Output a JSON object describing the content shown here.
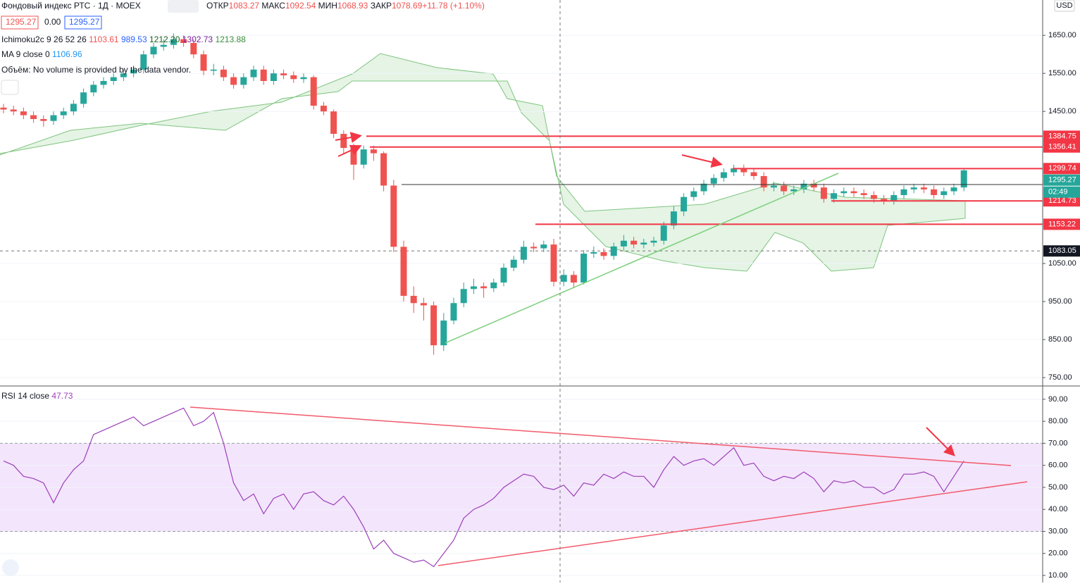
{
  "header": {
    "symbol": "Фондовый индекс РТС · 1Д · MOEX",
    "ohlc": [
      {
        "label": "ОТКР",
        "value": "1083.27"
      },
      {
        "label": "МАКС",
        "value": "1092.54"
      },
      {
        "label": "МИН",
        "value": "1068.93"
      },
      {
        "label": "ЗАКР",
        "value": "1078.69"
      }
    ],
    "change": "+11.78 (+1.10%)",
    "price_boxes": [
      "1295.27",
      "0.00",
      "1295.27"
    ],
    "currency": "USD",
    "countdown": "02:49"
  },
  "legends": {
    "ichimoku": {
      "name": "Ichimoku2c 9 26 52 26",
      "values": [
        "1103.61",
        "989.53",
        "1212.20",
        "1302.73",
        "1213.88"
      ]
    },
    "ma": {
      "name": "MA 9 close 0",
      "value": "1106.96"
    },
    "volume": "Объём: No volume is provided by the data vendor.",
    "rsi": {
      "name": "RSI 14 close",
      "value": "47.73"
    }
  },
  "chart_data": [
    {
      "type": "candlestick",
      "up_color": "#26a69a",
      "down_color": "#ef5350",
      "open": [
        1460,
        1455,
        1450,
        1440,
        1430,
        1425,
        1440,
        1450,
        1470,
        1500,
        1520,
        1530,
        1540,
        1550,
        1560,
        1600,
        1620,
        1625,
        1640,
        1630,
        1600,
        1557,
        1560,
        1540,
        1520,
        1540,
        1560,
        1530,
        1550,
        1545,
        1535,
        1540,
        1465,
        1450,
        1391,
        1354,
        1310,
        1350,
        1340,
        1255,
        1094,
        965,
        946,
        940,
        835,
        900,
        946,
        983,
        990,
        985,
        1000,
        1039,
        1060,
        1094,
        1090,
        1100,
        1002,
        1020,
        1000,
        1076,
        1080,
        1070,
        1095,
        1110,
        1100,
        1105,
        1110,
        1150,
        1187,
        1225,
        1240,
        1260,
        1275,
        1290,
        1300,
        1290,
        1280,
        1250,
        1255,
        1240,
        1245,
        1260,
        1250,
        1220,
        1235,
        1240,
        1235,
        1230,
        1220,
        1215,
        1230,
        1245,
        1250,
        1245,
        1230,
        1240,
        1250
      ],
      "high": [
        1470,
        1465,
        1460,
        1450,
        1440,
        1450,
        1460,
        1480,
        1510,
        1530,
        1540,
        1550,
        1560,
        1570,
        1610,
        1630,
        1640,
        1655,
        1650,
        1640,
        1610,
        1575,
        1570,
        1550,
        1550,
        1570,
        1570,
        1560,
        1560,
        1555,
        1550,
        1545,
        1475,
        1455,
        1400,
        1365,
        1360,
        1360,
        1345,
        1270,
        1110,
        990,
        960,
        950,
        920,
        960,
        1000,
        1010,
        1000,
        1010,
        1050,
        1070,
        1110,
        1105,
        1110,
        1115,
        1035,
        1030,
        1085,
        1095,
        1090,
        1105,
        1125,
        1120,
        1115,
        1120,
        1160,
        1200,
        1235,
        1250,
        1270,
        1285,
        1300,
        1310,
        1310,
        1300,
        1290,
        1265,
        1265,
        1255,
        1270,
        1270,
        1260,
        1245,
        1250,
        1250,
        1245,
        1240,
        1230,
        1240,
        1255,
        1260,
        1260,
        1255,
        1250,
        1260,
        1300
      ],
      "low": [
        1445,
        1440,
        1430,
        1420,
        1410,
        1415,
        1430,
        1440,
        1460,
        1490,
        1510,
        1520,
        1530,
        1540,
        1550,
        1590,
        1610,
        1615,
        1620,
        1590,
        1545,
        1545,
        1530,
        1510,
        1510,
        1530,
        1520,
        1520,
        1535,
        1525,
        1525,
        1455,
        1440,
        1380,
        1340,
        1270,
        1300,
        1320,
        1240,
        1080,
        950,
        920,
        900,
        810,
        820,
        890,
        935,
        970,
        960,
        975,
        990,
        1030,
        1050,
        1080,
        1080,
        990,
        990,
        985,
        995,
        1065,
        1060,
        1060,
        1085,
        1090,
        1090,
        1095,
        1100,
        1140,
        1175,
        1215,
        1230,
        1250,
        1265,
        1280,
        1280,
        1270,
        1240,
        1240,
        1230,
        1230,
        1235,
        1240,
        1210,
        1210,
        1225,
        1225,
        1220,
        1210,
        1205,
        1205,
        1220,
        1235,
        1235,
        1220,
        1220,
        1230,
        1240
      ],
      "close": [
        1455,
        1450,
        1440,
        1430,
        1425,
        1440,
        1450,
        1470,
        1500,
        1520,
        1530,
        1540,
        1550,
        1560,
        1600,
        1620,
        1625,
        1640,
        1630,
        1600,
        1557,
        1560,
        1540,
        1520,
        1540,
        1560,
        1530,
        1550,
        1545,
        1535,
        1540,
        1465,
        1450,
        1391,
        1354,
        1310,
        1350,
        1340,
        1255,
        1094,
        965,
        946,
        940,
        835,
        900,
        946,
        983,
        990,
        985,
        1000,
        1039,
        1060,
        1094,
        1090,
        1100,
        1002,
        1020,
        1000,
        1076,
        1080,
        1070,
        1095,
        1110,
        1100,
        1105,
        1110,
        1150,
        1187,
        1225,
        1240,
        1260,
        1275,
        1290,
        1300,
        1290,
        1280,
        1250,
        1255,
        1240,
        1245,
        1260,
        1250,
        1220,
        1235,
        1240,
        1235,
        1230,
        1220,
        1215,
        1230,
        1245,
        1250,
        1245,
        1230,
        1240,
        1250,
        1295
      ],
      "ylim": [
        728,
        1743
      ],
      "yticks": [
        {
          "value": 750,
          "label": "750.00"
        },
        {
          "value": 850,
          "label": "850.00"
        },
        {
          "value": 950,
          "label": "950.00"
        },
        {
          "value": 1050,
          "label": "1050.00"
        },
        {
          "value": 1450,
          "label": "1450.00"
        },
        {
          "value": 1550,
          "label": "1550.00"
        },
        {
          "value": 1650,
          "label": "1650.00"
        }
      ],
      "levels": [
        {
          "value": 1384.75,
          "color": "#f23645"
        },
        {
          "value": 1356.41,
          "color": "#f23645"
        },
        {
          "value": 1299.74,
          "color": "#f23645"
        },
        {
          "value": 1214.73,
          "color": "#f23645"
        },
        {
          "value": 1153.22,
          "color": "#f23645"
        }
      ],
      "last_price": {
        "value": 1295.27,
        "color": "#26a69a"
      },
      "crosshair": {
        "value": 1083.05,
        "color": "#131722"
      }
    },
    {
      "type": "line",
      "color": "#9c3fb8",
      "values": [
        62,
        60,
        55,
        54,
        52,
        43,
        52,
        58,
        62,
        74,
        76,
        78,
        80,
        82,
        78,
        80,
        82,
        84,
        86,
        78,
        80,
        84,
        70,
        52,
        44,
        47,
        38,
        45,
        47,
        40,
        47,
        48,
        44,
        42,
        46,
        40,
        32,
        22,
        26,
        20,
        18,
        16,
        17,
        14,
        20,
        26,
        36,
        40,
        42,
        45,
        50,
        53,
        56,
        55,
        50,
        49,
        51,
        46,
        52,
        51,
        56,
        54,
        57,
        55,
        55,
        50,
        58,
        64,
        60,
        62,
        63,
        60,
        64,
        68,
        60,
        61,
        55,
        53,
        55,
        54,
        57,
        54,
        48,
        53,
        52,
        53,
        50,
        50,
        47,
        49,
        56,
        56,
        57,
        55,
        48,
        55,
        62
      ],
      "ylim": [
        6.8,
        95.4
      ],
      "yticks": [
        {
          "value": 10,
          "label": "10.00"
        },
        {
          "value": 20,
          "label": "20.00"
        },
        {
          "value": 30,
          "label": "30.00"
        },
        {
          "value": 40,
          "label": "40.00"
        },
        {
          "value": 50,
          "label": "50.00"
        },
        {
          "value": 60,
          "label": "60.00"
        },
        {
          "value": 70,
          "label": "70.00"
        },
        {
          "value": 80,
          "label": "80.00"
        },
        {
          "value": 90,
          "label": "90.00"
        }
      ],
      "band": [
        30,
        70
      ],
      "band_color": "#f3e5fc"
    }
  ]
}
